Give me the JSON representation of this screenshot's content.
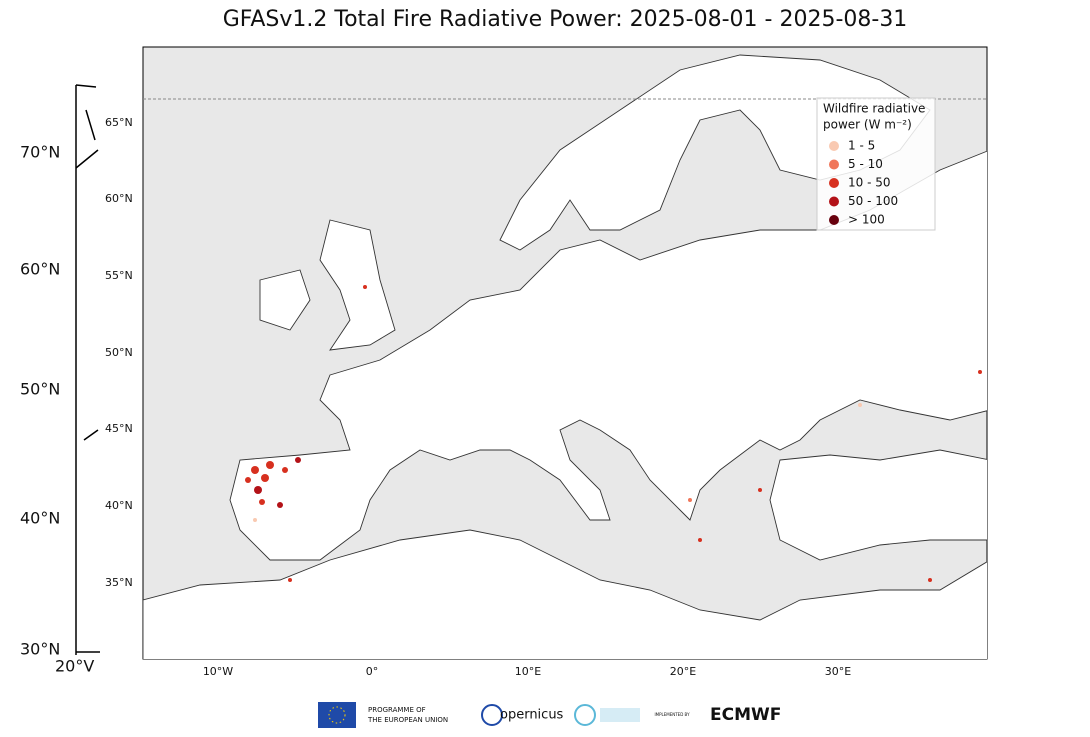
{
  "title": "GFASv1.2 Total Fire Radiative Power: 2025-08-01 - 2025-08-31",
  "outer_axis": {
    "labels": [
      "70°N",
      "60°N",
      "50°N",
      "40°N",
      "30°N",
      "20°V"
    ]
  },
  "map": {
    "lat_labels": [
      "65°N",
      "60°N",
      "55°N",
      "50°N",
      "45°N",
      "40°N",
      "35°N"
    ],
    "lon_labels": [
      "10°W",
      "0°",
      "10°E",
      "20°E",
      "30°E"
    ]
  },
  "legend": {
    "title_lines": [
      "Wildfire radiative",
      "power (W m⁻²)"
    ],
    "entries": [
      {
        "label": "1 - 5",
        "color": "#f9c9b1"
      },
      {
        "label": "5 - 10",
        "color": "#f0765a"
      },
      {
        "label": "10 - 50",
        "color": "#d7301f"
      },
      {
        "label": "50 - 100",
        "color": "#b31218"
      },
      {
        "label": "> 100",
        "color": "#67000d"
      }
    ]
  },
  "footer": {
    "eu": [
      "PROGRAMME OF",
      "THE EUROPEAN UNION"
    ],
    "copernicus": "opernicus",
    "implemented_by": "IMPLEMENTED BY",
    "ecmwf": "ECMWF"
  }
}
